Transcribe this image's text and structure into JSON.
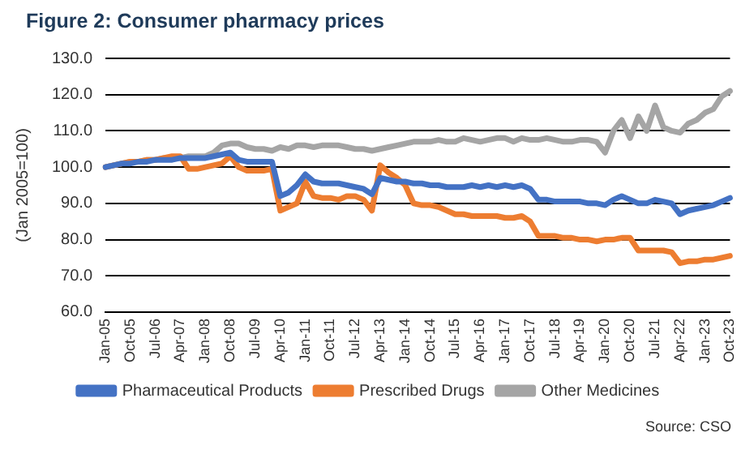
{
  "chart_data": {
    "type": "line",
    "title": "Figure 2: Consumer pharmacy prices",
    "ylabel": "(Jan 2005=100)",
    "categories": [
      "Jan-05",
      null,
      null,
      "Oct-05",
      null,
      null,
      "Jul-06",
      null,
      null,
      "Apr-07",
      null,
      null,
      "Jan-08",
      null,
      null,
      "Oct-08",
      null,
      null,
      "Jul-09",
      null,
      null,
      "Apr-10",
      null,
      null,
      "Jan-11",
      null,
      null,
      "Oct-11",
      null,
      null,
      "Jul-12",
      null,
      null,
      "Apr-13",
      null,
      null,
      "Jan-14",
      null,
      null,
      "Oct-14",
      null,
      null,
      "Jul-15",
      null,
      null,
      "Apr-16",
      null,
      null,
      "Jan-17",
      null,
      null,
      "Oct-17",
      null,
      null,
      "Jul-18",
      null,
      null,
      "Apr-19",
      null,
      null,
      "Jan-20",
      null,
      null,
      "Oct-20",
      null,
      null,
      "Jul-21",
      null,
      null,
      "Apr-22",
      null,
      null,
      "Jan-23",
      null,
      null,
      "Oct-23"
    ],
    "series": [
      {
        "name": "Pharmaceutical Products",
        "color": "#4472c4",
        "values": [
          100,
          100.5,
          101,
          101,
          101.5,
          101.5,
          102,
          102,
          102,
          102.5,
          102.5,
          102.5,
          102.5,
          103,
          103.5,
          104,
          102,
          101.5,
          101.5,
          101.5,
          101.5,
          92,
          93,
          95,
          98,
          96,
          95.5,
          95.5,
          95.5,
          95,
          94.5,
          94,
          92.5,
          97,
          96.5,
          96,
          96,
          95.5,
          95.5,
          95,
          95,
          94.5,
          94.5,
          94.5,
          95,
          94.5,
          95,
          94.5,
          95,
          94.5,
          95,
          94,
          91,
          91,
          90.5,
          90.5,
          90.5,
          90.5,
          90,
          90,
          89.5,
          91,
          92,
          91,
          90,
          90,
          91,
          90.5,
          90,
          87,
          88,
          88.5,
          89,
          89.5,
          90.5,
          91.5
        ]
      },
      {
        "name": "Prescribed Drugs",
        "color": "#ed7d31",
        "values": [
          100,
          100.5,
          101,
          101.5,
          101.5,
          102,
          102,
          102.5,
          103,
          103,
          99.5,
          99.5,
          100,
          100.5,
          101,
          103,
          100,
          99,
          99,
          99,
          99.5,
          88,
          89,
          90,
          96,
          92,
          91.5,
          91.5,
          91,
          92,
          92,
          91,
          88,
          100.5,
          98.5,
          97,
          95,
          90,
          89.5,
          89.5,
          89,
          88,
          87,
          87,
          86.5,
          86.5,
          86.5,
          86.5,
          86,
          86,
          86.5,
          85,
          81,
          81,
          81,
          80.5,
          80.5,
          80,
          80,
          79.5,
          80,
          80,
          80.5,
          80.5,
          77,
          77,
          77,
          77,
          76.5,
          73.5,
          74,
          74,
          74.5,
          74.5,
          75,
          75.5
        ]
      },
      {
        "name": "Other Medicines",
        "color": "#a5a5a5",
        "values": [
          100,
          100.5,
          101,
          101.5,
          101.5,
          102,
          102,
          102.5,
          102.5,
          102.5,
          103,
          103,
          103,
          104,
          106,
          106.5,
          106.5,
          105.5,
          105,
          105,
          104.5,
          105.5,
          105,
          106,
          106,
          105.5,
          106,
          106,
          106,
          105.5,
          105,
          105,
          104.5,
          105,
          105.5,
          106,
          106.5,
          107,
          107,
          107,
          107.5,
          107,
          107,
          108,
          107.5,
          107,
          107.5,
          108,
          108,
          107,
          108,
          107.5,
          107.5,
          108,
          107.5,
          107,
          107,
          107.5,
          107.5,
          107,
          104,
          110,
          113,
          108,
          114,
          110,
          117,
          111,
          110,
          109.5,
          112,
          113,
          115,
          116,
          119.5,
          121
        ]
      }
    ],
    "ylim": [
      60,
      130
    ],
    "yticks": [
      {
        "value": 60,
        "label": "60.0"
      },
      {
        "value": 70,
        "label": "70.0"
      },
      {
        "value": 80,
        "label": "80.0"
      },
      {
        "value": 90,
        "label": "90.0"
      },
      {
        "value": 100,
        "label": "100.0"
      },
      {
        "value": 110,
        "label": "110.0"
      },
      {
        "value": 120,
        "label": "120.0"
      },
      {
        "value": 130,
        "label": "130.0"
      }
    ],
    "grid": "y",
    "legend": "bottom",
    "marker": "none",
    "line_style": "solid",
    "annotations": [
      "Source: CSO"
    ]
  }
}
